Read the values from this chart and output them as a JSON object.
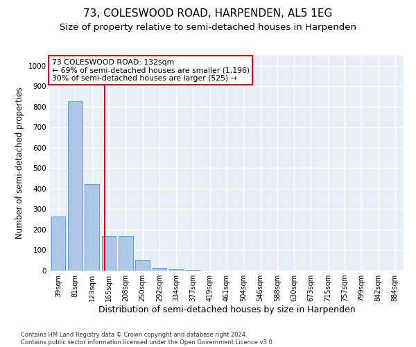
{
  "title1": "73, COLESWOOD ROAD, HARPENDEN, AL5 1EG",
  "title2": "Size of property relative to semi-detached houses in Harpenden",
  "xlabel": "Distribution of semi-detached houses by size in Harpenden",
  "ylabel": "Number of semi-detached properties",
  "footnote": "Contains HM Land Registry data © Crown copyright and database right 2024.\nContains public sector information licensed under the Open Government Licence v3.0.",
  "bar_labels": [
    "39sqm",
    "81sqm",
    "123sqm",
    "165sqm",
    "208sqm",
    "250sqm",
    "292sqm",
    "334sqm",
    "377sqm",
    "419sqm",
    "461sqm",
    "504sqm",
    "546sqm",
    "588sqm",
    "630sqm",
    "673sqm",
    "715sqm",
    "757sqm",
    "799sqm",
    "842sqm",
    "884sqm"
  ],
  "bar_values": [
    265,
    825,
    425,
    170,
    170,
    50,
    13,
    8,
    5,
    0,
    0,
    0,
    0,
    0,
    0,
    0,
    0,
    0,
    0,
    0,
    0
  ],
  "bar_color": "#aec6e8",
  "bar_edge_color": "#5a9fd4",
  "property_line_x": 2.75,
  "property_line_color": "red",
  "annotation_text": "73 COLESWOOD ROAD: 132sqm\n← 69% of semi-detached houses are smaller (1,196)\n30% of semi-detached houses are larger (525) →",
  "annotation_box_color": "white",
  "annotation_box_edge_color": "red",
  "ylim": [
    0,
    1050
  ],
  "background_color": "#e8eef5",
  "grid_color": "white",
  "title1_fontsize": 11,
  "title2_fontsize": 9.5,
  "ylabel_fontsize": 8.5,
  "xlabel_fontsize": 9,
  "footnote_fontsize": 6,
  "annot_fontsize": 7.8,
  "tick_fontsize": 7,
  "ytick_fontsize": 7.5
}
